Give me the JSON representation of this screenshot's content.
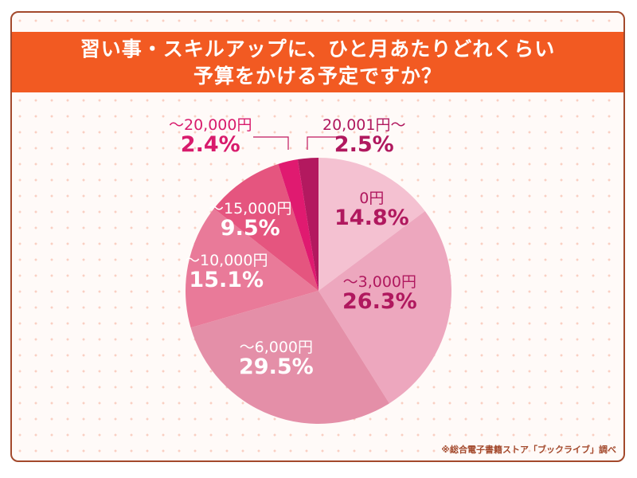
{
  "header": {
    "title_line1": "習い事・スキルアップに、ひと月あたりどれくらい",
    "title_line2": "予算をかける予定ですか？"
  },
  "source": "※総合電子書籍ストア「ブックライブ」調べ",
  "chart_data": {
    "type": "pie",
    "categories": [
      "0円",
      "〜3,000円",
      "〜6,000円",
      "〜10,000円",
      "〜15,000円",
      "〜20,000円",
      "20,001円〜"
    ],
    "values": [
      14.8,
      26.3,
      29.5,
      15.1,
      9.5,
      2.4,
      2.5
    ],
    "value_labels": [
      "14.8%",
      "26.3%",
      "29.5%",
      "15.1%",
      "9.5%",
      "2.4%",
      "2.5%"
    ],
    "colors": [
      "#f4c1d1",
      "#eda7be",
      "#e48fa8",
      "#e97a99",
      "#e5557f",
      "#e01a70",
      "#b3195f"
    ],
    "start": "top",
    "direction": "clockwise"
  }
}
